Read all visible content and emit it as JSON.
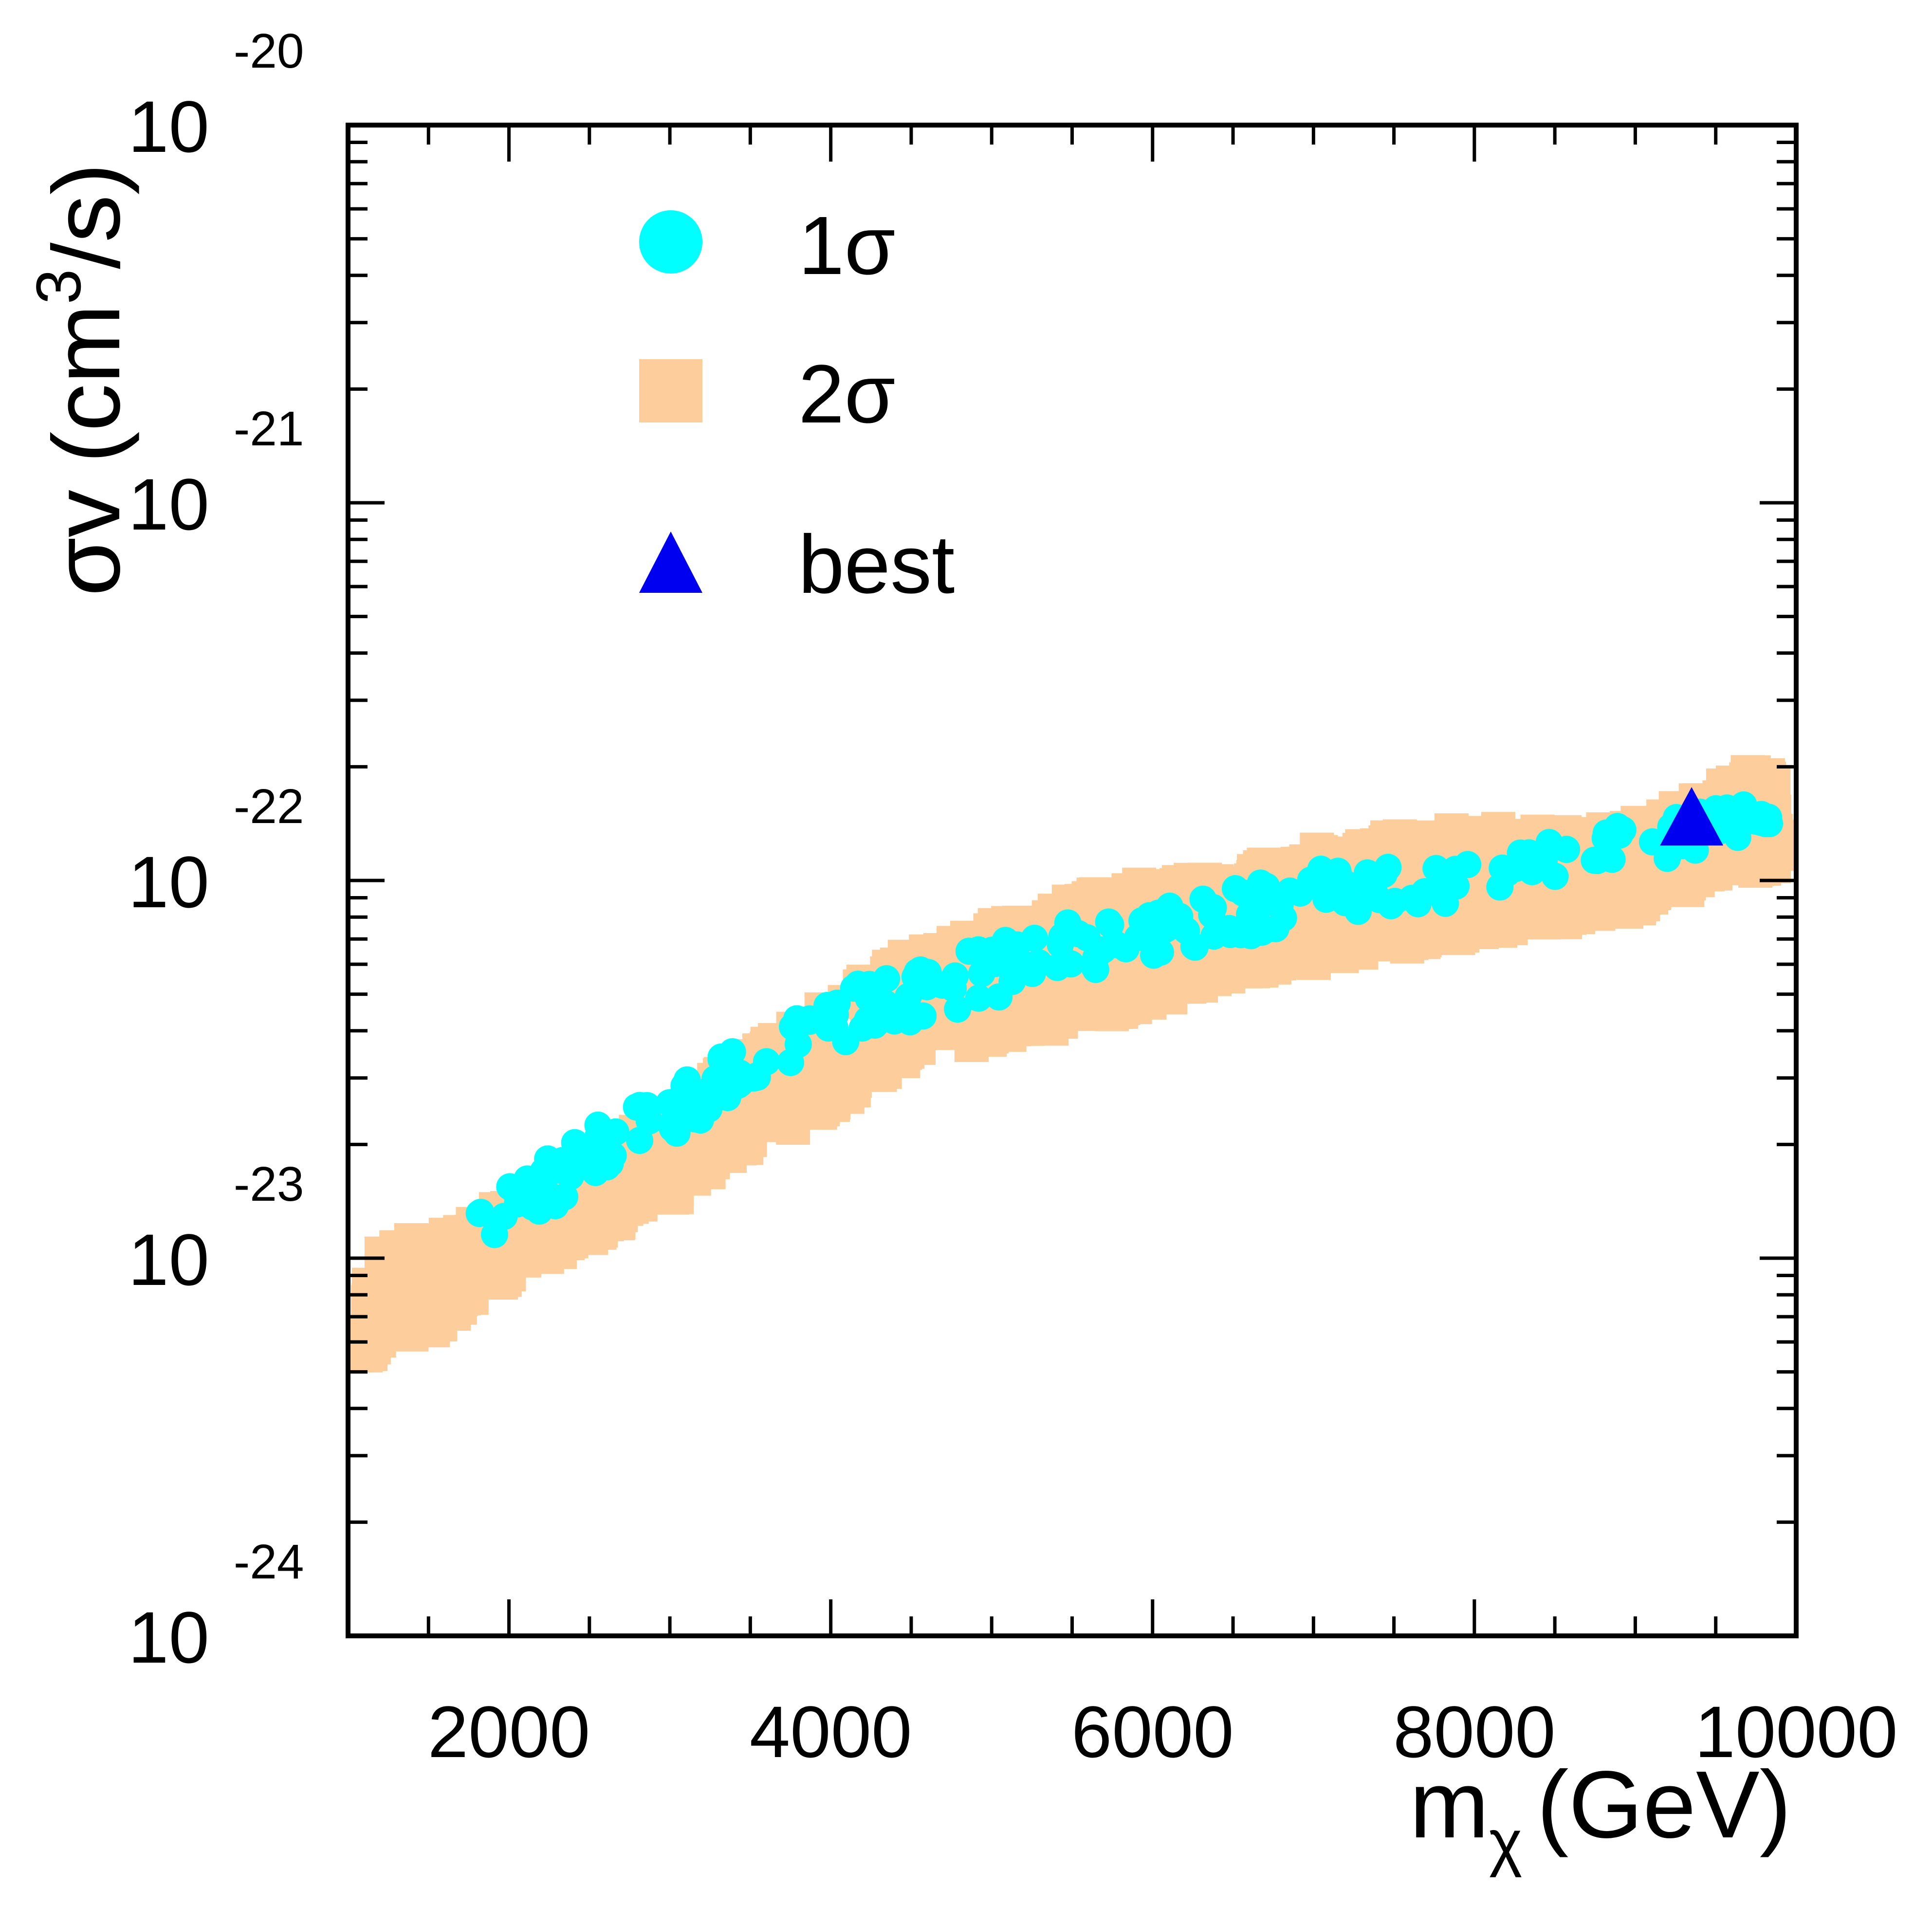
{
  "colors": {
    "one_sigma": "#00ffff",
    "two_sigma": "#fdce9b",
    "best": "#0000f0",
    "axis": "#000000"
  },
  "chart_data": {
    "type": "scatter",
    "xlabel_main": "m",
    "xlabel_sub": "χ",
    "xlabel_unit": "(GeV)",
    "ylabel_main": "σv (cm",
    "ylabel_sup": "3",
    "ylabel_tail": "/s)",
    "xlim": [
      1000,
      10000
    ],
    "ylim": [
      -24,
      -20
    ],
    "yscale": "log",
    "x_ticks": [
      {
        "value": 2000,
        "label": "2000"
      },
      {
        "value": 4000,
        "label": "4000"
      },
      {
        "value": 6000,
        "label": "6000"
      },
      {
        "value": 8000,
        "label": "8000"
      },
      {
        "value": 10000,
        "label": "10000"
      }
    ],
    "y_ticks": [
      {
        "value": -20,
        "base": "10",
        "exponent": "-20"
      },
      {
        "value": -21,
        "base": "10",
        "exponent": "-21"
      },
      {
        "value": -22,
        "base": "10",
        "exponent": "-22"
      },
      {
        "value": -23,
        "base": "10",
        "exponent": "-23"
      },
      {
        "value": -24,
        "base": "10",
        "exponent": "-24"
      }
    ],
    "legend": {
      "position": "top-left",
      "entries": [
        {
          "label": "1σ",
          "marker": "circle",
          "series": "one_sigma"
        },
        {
          "label": "2σ",
          "marker": "square",
          "series": "two_sigma"
        },
        {
          "label": "best",
          "marker": "triangle",
          "series": "best"
        }
      ]
    },
    "series": [
      {
        "name": "2σ",
        "key": "two_sigma",
        "marker": "square",
        "band": {
          "x": [
            1000,
            1200,
            1500,
            2000,
            2500,
            3000,
            3500,
            4000,
            4500,
            5000,
            5500,
            6000,
            6500,
            7000,
            7500,
            8000,
            8500,
            9000,
            9500,
            10000
          ],
          "upper": [
            -23.15,
            -22.95,
            -22.95,
            -22.85,
            -22.75,
            -22.6,
            -22.45,
            -22.32,
            -22.18,
            -22.12,
            -22.05,
            -22.0,
            -21.98,
            -21.92,
            -21.88,
            -21.86,
            -21.87,
            -21.85,
            -21.75,
            -21.65
          ],
          "lower": [
            -23.3,
            -23.25,
            -23.2,
            -23.05,
            -22.95,
            -22.85,
            -22.72,
            -22.6,
            -22.48,
            -22.43,
            -22.38,
            -22.33,
            -22.25,
            -22.22,
            -22.18,
            -22.15,
            -22.12,
            -22.08,
            -22.0,
            -21.95
          ]
        }
      },
      {
        "name": "1σ",
        "key": "one_sigma",
        "marker": "circle",
        "band": {
          "x": [
            1800,
            2000,
            2500,
            3000,
            3500,
            4000,
            4500,
            5000,
            5500,
            6000,
            6500,
            7000,
            7500,
            8000,
            8500,
            9000,
            9500,
            10000
          ],
          "upper": [
            -22.85,
            -22.8,
            -22.65,
            -22.55,
            -22.42,
            -22.3,
            -22.22,
            -22.15,
            -22.1,
            -22.08,
            -22.02,
            -21.97,
            -21.96,
            -21.95,
            -21.88,
            -21.85,
            -21.8,
            -21.75
          ],
          "lower": [
            -22.95,
            -22.95,
            -22.8,
            -22.7,
            -22.55,
            -22.45,
            -22.38,
            -22.32,
            -22.26,
            -22.2,
            -22.16,
            -22.1,
            -22.08,
            -22.05,
            -22.0,
            -21.98,
            -21.9,
            -21.85
          ]
        }
      },
      {
        "name": "best",
        "key": "best",
        "marker": "triangle",
        "points": [
          {
            "x": 9350,
            "y": -21.83
          }
        ]
      }
    ]
  }
}
